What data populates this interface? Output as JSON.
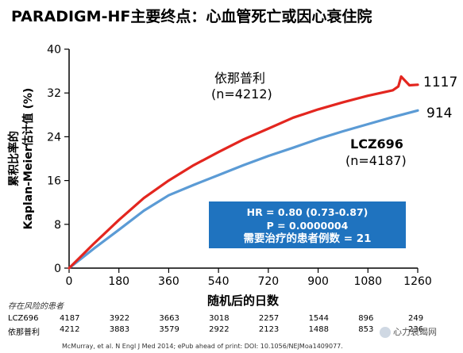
{
  "title": "PARADIGM-HF主要终点：心血管死亡或因心衰住院",
  "chart_data": {
    "type": "line",
    "ylabel_line1": "累积比率的",
    "ylabel_line2": "Kaplan-Meier估计值 (%)",
    "xlabel": "随机后的日数",
    "xlim": [
      0,
      1260
    ],
    "ylim": [
      0,
      40
    ],
    "x_ticks": [
      0,
      180,
      360,
      540,
      720,
      900,
      1080,
      1260
    ],
    "y_ticks": [
      0,
      8,
      16,
      24,
      32,
      40
    ],
    "series": [
      {
        "name": "依那普利",
        "n_label": "(n=4212)",
        "end_label": "1117",
        "color": "#e3261f",
        "x": [
          0,
          30,
          90,
          180,
          270,
          360,
          450,
          540,
          630,
          720,
          810,
          900,
          990,
          1080,
          1170,
          1190,
          1200,
          1230,
          1260
        ],
        "y": [
          0,
          1.5,
          4.5,
          8.8,
          12.8,
          16.0,
          18.8,
          21.2,
          23.5,
          25.5,
          27.5,
          29.0,
          30.3,
          31.5,
          32.5,
          33.2,
          35.0,
          33.4,
          33.5
        ]
      },
      {
        "name": "LCZ696",
        "n_label": "(n=4187)",
        "end_label": "914",
        "color": "#5b9bd5",
        "x": [
          0,
          30,
          90,
          180,
          270,
          360,
          450,
          540,
          630,
          720,
          810,
          900,
          990,
          1080,
          1170,
          1260
        ],
        "y": [
          0,
          1.2,
          3.6,
          7.0,
          10.5,
          13.3,
          15.2,
          17.0,
          18.8,
          20.5,
          22.0,
          23.6,
          25.0,
          26.3,
          27.6,
          28.8
        ]
      }
    ]
  },
  "hr_box": {
    "line1": "HR = 0.80 (0.73-0.87)",
    "line2": "P = 0.0000004",
    "line3": "需要治疗的患者例数 = 21"
  },
  "risk_table": {
    "title": "存在风险的患者",
    "rows": [
      {
        "label": "LCZ696",
        "values": [
          "4187",
          "3922",
          "3663",
          "3018",
          "2257",
          "1544",
          "896",
          "249"
        ]
      },
      {
        "label": "依那普利",
        "values": [
          "4212",
          "3883",
          "3579",
          "2922",
          "2123",
          "1488",
          "853",
          "236"
        ]
      }
    ]
  },
  "footnote": "McMurray, et al. N Engl J Med 2014; ePub ahead of print: DOI: 10.1056/NEJMoa1409077.",
  "watermark": "心力衰竭网"
}
